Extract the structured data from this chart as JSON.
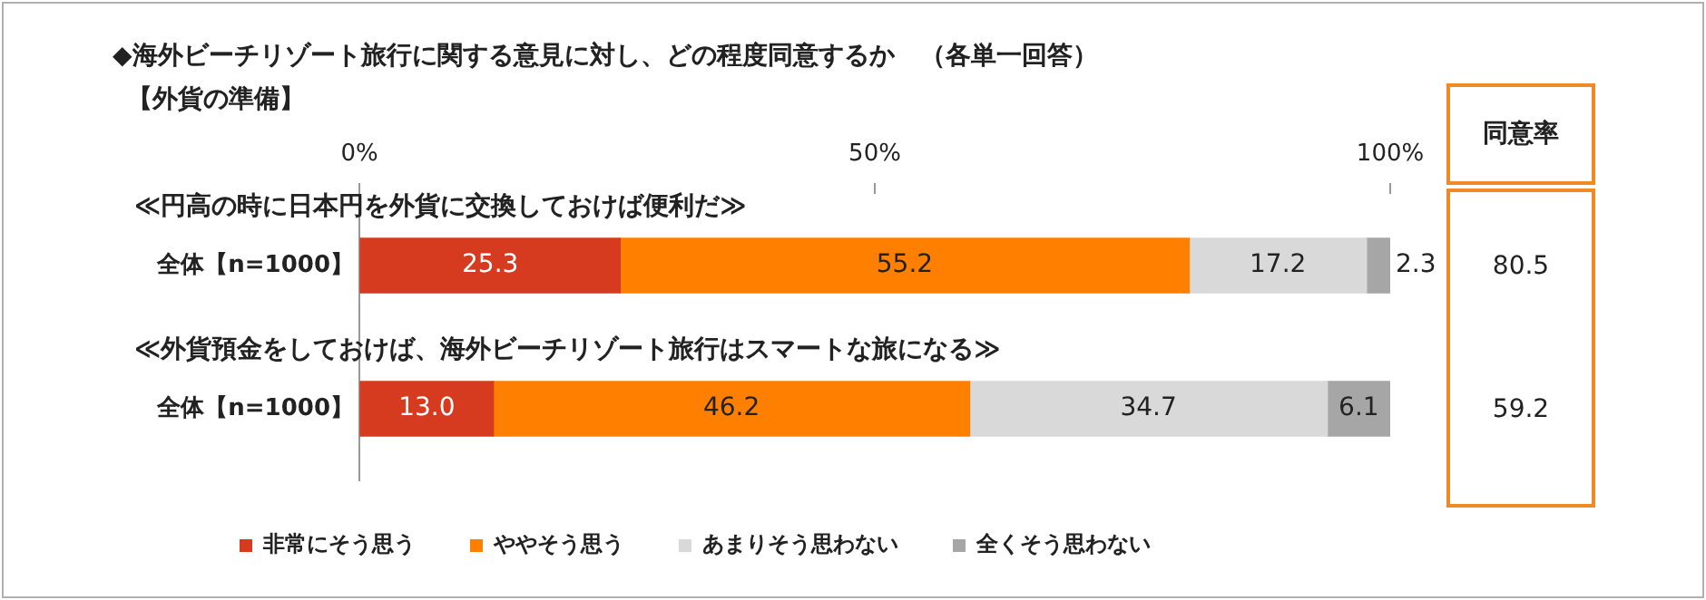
{
  "chart_data": {
    "type": "bar",
    "orientation": "horizontal",
    "stacked": true,
    "title": "◆海外ビーチリゾート旅行に関する意見に対し、どの程度同意するか　（各単一回答）",
    "subtitle": "【外貨の準備】",
    "categories": [
      "全体【n=1000】",
      "全体【n=1000】"
    ],
    "series": [
      {
        "name": "非常にそう思う",
        "color": "#d63b1f",
        "values": [
          25.3,
          13.0
        ],
        "value_labels": [
          "25.3",
          "13.0"
        ]
      },
      {
        "name": "ややそう思う",
        "color": "#ff8000",
        "values": [
          55.2,
          46.2
        ],
        "value_labels": [
          "55.2",
          "46.2"
        ]
      },
      {
        "name": "あまりそう思わない",
        "color": "#d9d9d9",
        "values": [
          17.2,
          34.7
        ],
        "value_labels": [
          "17.2",
          "34.7"
        ]
      },
      {
        "name": "全くそう思わない",
        "color": "#a6a6a6",
        "values": [
          2.3,
          6.1
        ],
        "value_labels": [
          "2.3",
          "6.1"
        ]
      }
    ],
    "xlim": [
      0,
      100
    ],
    "xticks": [
      {
        "value": 0,
        "label": "0%"
      },
      {
        "value": 50,
        "label": "50%"
      },
      {
        "value": 100,
        "label": "100%"
      }
    ],
    "legend": "bottom",
    "annotations": [
      "≪円高の時に日本円を外貨に交換しておけば便利だ≫",
      "≪外貨預金をしておけば、海外ビーチリゾート旅行はスマートな旅になる≫",
      "同意率",
      "80.5",
      "59.2"
    ]
  }
}
